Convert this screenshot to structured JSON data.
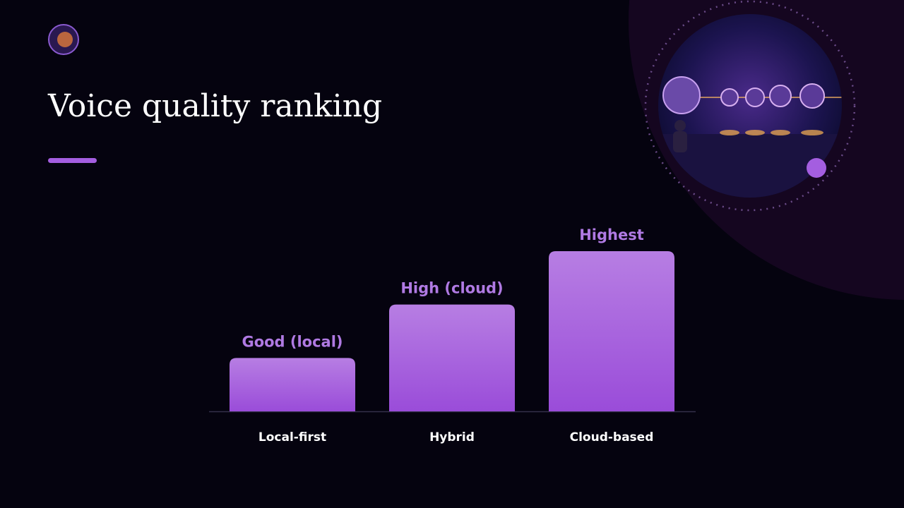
{
  "chart_data": {
    "type": "bar",
    "title": "Voice quality ranking",
    "categories": [
      "Local-first",
      "Hybrid",
      "Cloud-based"
    ],
    "values": [
      1,
      2,
      3
    ],
    "value_labels": [
      "Good (local)",
      "High (cloud)",
      "Highest"
    ],
    "color": "#a45ee0",
    "ylim": [
      0,
      3
    ]
  }
}
